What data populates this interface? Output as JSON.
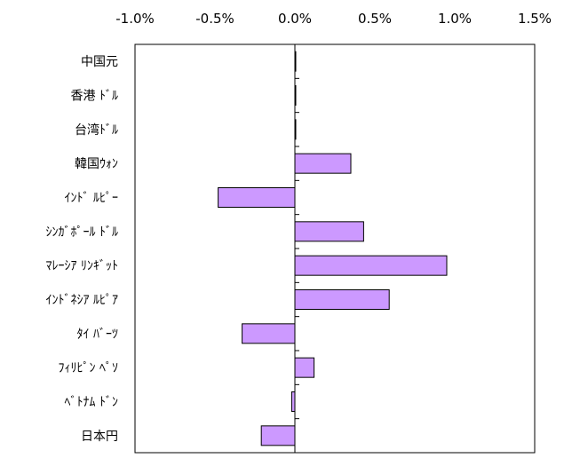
{
  "chart_data": {
    "type": "bar",
    "orientation": "horizontal",
    "categories": [
      "中国元",
      "香港ドル",
      "台湾ドル",
      "韓国ウォン",
      "インドルピー",
      "シンガポールドル",
      "マレーシアリンギット",
      "インドネシアルピア",
      "タイバーツ",
      "フィリピンペソ",
      "ベトナムドン",
      "日本円"
    ],
    "category_labels": [
      "中国元",
      "香港 ﾄﾞﾙ",
      "台湾ﾄﾞﾙ",
      "韓国ｳｫﾝ",
      "ｲﾝﾄﾞ ﾙﾋﾟｰ",
      "ｼﾝｶﾞﾎﾟｰﾙ ﾄﾞﾙ",
      "ﾏﾚｰｼｱ ﾘﾝｷﾞｯﾄ",
      "ｲﾝﾄﾞﾈｼｱ ﾙﾋﾟｱ",
      "ﾀｲ ﾊﾞｰﾂ",
      "ﾌｨﾘﾋﾟﾝ ﾍﾟｿ",
      "ﾍﾞﾄﾅﾑ ﾄﾞﾝ",
      "日本円"
    ],
    "values": [
      0.0,
      0.005,
      0.0,
      0.35,
      -0.48,
      0.43,
      0.95,
      0.59,
      -0.33,
      0.12,
      -0.02,
      -0.21
    ],
    "unit": "%",
    "xlim": [
      -1.0,
      1.5
    ],
    "xticks": [
      -1.0,
      -0.5,
      0.0,
      0.5,
      1.0,
      1.5
    ],
    "xtick_labels": [
      "-1.0%",
      "-0.5%",
      "0.0%",
      "0.5%",
      "1.0%",
      "1.5%"
    ],
    "x_axis_position": "top",
    "bar_color": "#cc99ff",
    "bar_edge_color": "#000000",
    "grid": false,
    "legend": "none"
  }
}
